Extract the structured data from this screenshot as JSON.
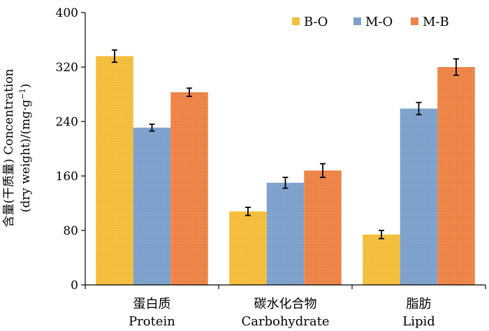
{
  "chart_data": {
    "type": "bar",
    "categories": [
      {
        "zh": "蛋白质",
        "en": "Protein"
      },
      {
        "zh": "碳水化合物",
        "en": "Carbohydrate"
      },
      {
        "zh": "脂肪",
        "en": "Lipid"
      }
    ],
    "series": [
      {
        "name": "B-O",
        "color": "#F5BE3B",
        "values": [
          336,
          108,
          74
        ],
        "errors": [
          9,
          6,
          6
        ]
      },
      {
        "name": "M-O",
        "color": "#7DA2CC",
        "values": [
          231,
          150,
          259
        ],
        "errors": [
          5,
          8,
          9
        ]
      },
      {
        "name": "M-B",
        "color": "#EE8447",
        "values": [
          283,
          168,
          320
        ],
        "errors": [
          6,
          10,
          12
        ]
      }
    ],
    "ylabel_line1": "含量(干质量) Concentration",
    "ylabel_line2_main": "(dry weight)/(mg·g",
    "ylabel_line2_sup": "−1",
    "ylabel_line2_end": ")",
    "yticks": [
      0,
      80,
      160,
      240,
      320,
      400
    ],
    "ylim": [
      0,
      400
    ],
    "grid": false,
    "legend_position": "top-right"
  }
}
